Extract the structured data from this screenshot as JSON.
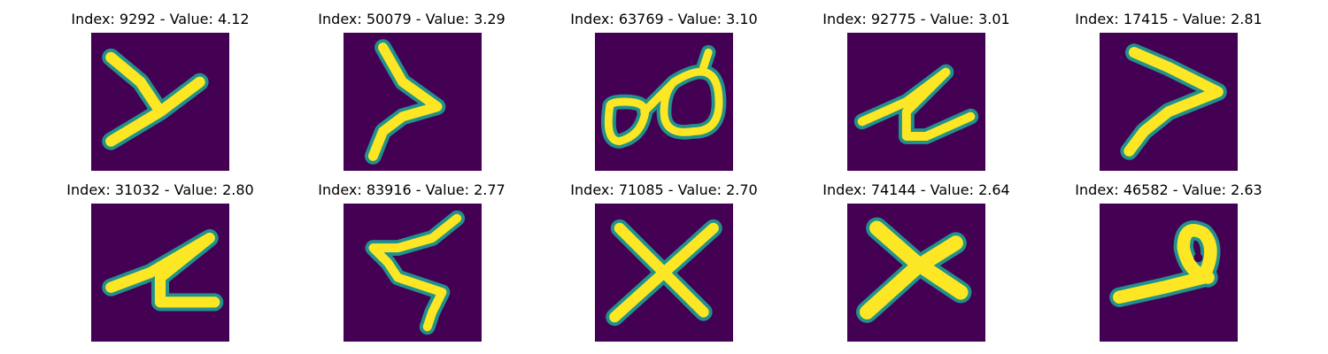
{
  "figure": {
    "colors": {
      "background": "#440154",
      "mid": "#21918c",
      "high": "#fde725"
    },
    "panels": [
      {
        "index": "9292",
        "value": "4.12",
        "title": "Index: 9292 - Value: 4.12",
        "glyph": "y-shape"
      },
      {
        "index": "50079",
        "value": "3.29",
        "title": "Index: 50079 - Value: 3.29",
        "glyph": "greater-than"
      },
      {
        "index": "63769",
        "value": "3.10",
        "title": "Index: 63769 - Value: 3.10",
        "glyph": "loops"
      },
      {
        "index": "92775",
        "value": "3.01",
        "title": "Index: 92775 - Value: 3.01",
        "glyph": "zigzag"
      },
      {
        "index": "17415",
        "value": "2.81",
        "title": "Index: 17415 - Value: 2.81",
        "glyph": "greater-than"
      },
      {
        "index": "31032",
        "value": "2.80",
        "title": "Index: 31032 - Value: 2.80",
        "glyph": "zigzag"
      },
      {
        "index": "83916",
        "value": "2.77",
        "title": "Index: 83916 - Value: 2.77",
        "glyph": "s-shape"
      },
      {
        "index": "71085",
        "value": "2.70",
        "title": "Index: 71085 - Value: 2.70",
        "glyph": "x-shape"
      },
      {
        "index": "74144",
        "value": "2.64",
        "title": "Index: 74144 - Value: 2.64",
        "glyph": "x-shape"
      },
      {
        "index": "46582",
        "value": "2.63",
        "title": "Index: 46582 - Value: 2.63",
        "glyph": "loop-tail"
      }
    ]
  }
}
